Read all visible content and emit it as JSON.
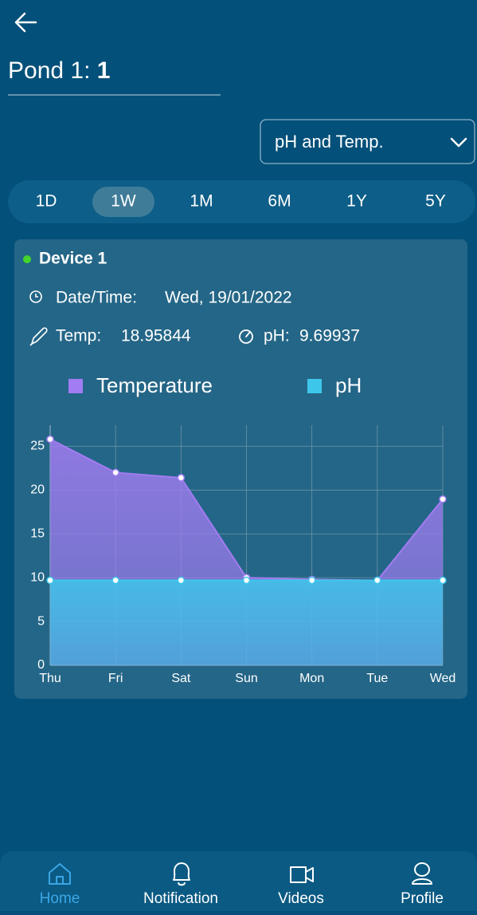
{
  "header": {
    "title": "Pond 1: ",
    "pond_id": "1"
  },
  "dropdown": "pH and Temp.",
  "ranges": [
    "1D",
    "1W",
    "1M",
    "6M",
    "1Y",
    "5Y"
  ],
  "selected_range": 1,
  "device": {
    "name": "Device 1",
    "status_color": "#44d62c",
    "date_label": "Date/Time:",
    "date_value": "Wed, 19/01/2022",
    "temp_label": "Temp:",
    "temp_value": "18.95844",
    "ph_label": "pH:",
    "ph_value": "9.69937"
  },
  "chart_data": {
    "type": "area",
    "categories": [
      "Thu",
      "Fri",
      "Sat",
      "Sun",
      "Mon",
      "Tue",
      "Wed"
    ],
    "series": [
      {
        "name": "Temperature",
        "color": "#a27cf2",
        "values": [
          25.8,
          22.0,
          21.4,
          10.0,
          9.8,
          9.7,
          18.95844
        ]
      },
      {
        "name": "pH",
        "color": "#3ec6ea",
        "values": [
          9.7,
          9.7,
          9.7,
          9.7,
          9.7,
          9.7,
          9.69937
        ]
      }
    ],
    "ylim": [
      0,
      27.4
    ],
    "yticks": [
      0,
      5,
      10,
      15,
      20,
      25
    ],
    "grid": true
  },
  "nav": {
    "items": [
      "Home",
      "Notification",
      "Videos",
      "Profile"
    ],
    "selected": 0
  }
}
